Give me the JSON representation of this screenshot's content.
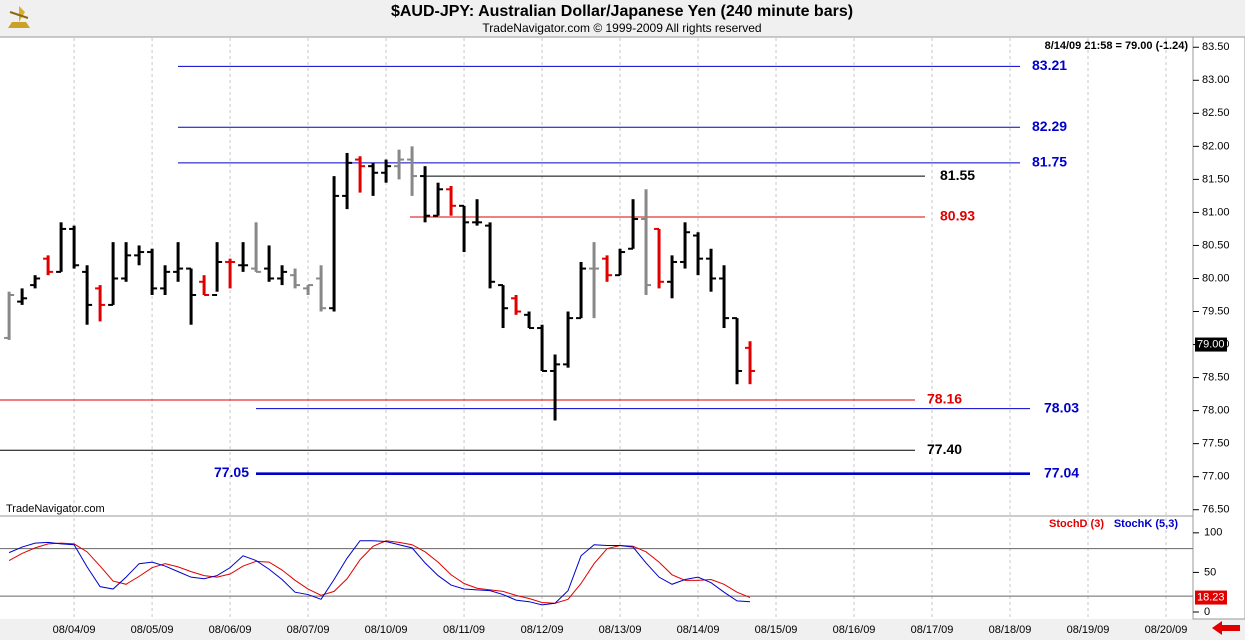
{
  "chart_data": {
    "type": "ohlc",
    "title": "$AUD-JPY:  Australian Dollar/Japanese Yen  (240 minute bars)",
    "subtitle": "TradeNavigator.com © 1999-2009 All rights reserved",
    "info": "8/14/09 21:58 = 79.00 (-1.24)",
    "watermark": "TradeNavigator.com",
    "last_price": {
      "value": 79.0,
      "label": "79.00"
    },
    "categories": [
      null,
      null,
      null,
      null,
      null,
      null,
      null,
      null,
      null,
      null,
      null,
      null,
      null,
      null,
      null,
      null,
      null,
      null,
      null,
      null,
      null,
      null,
      null,
      null,
      null,
      null,
      null,
      null,
      null,
      null,
      null,
      null,
      null,
      null,
      null,
      null,
      null,
      null,
      null,
      null,
      null,
      null,
      null,
      null,
      null,
      null,
      null,
      null,
      null,
      null,
      null,
      null,
      null,
      null,
      null,
      null,
      null,
      null
    ],
    "open": [
      79.1,
      79.65,
      79.9,
      80.3,
      80.1,
      80.75,
      80.1,
      79.85,
      79.6,
      80.0,
      80.35,
      80.4,
      79.85,
      80.1,
      80.15,
      79.95,
      79.75,
      80.25,
      80.2,
      80.15,
      80.15,
      80.0,
      80.05,
      79.85,
      80.0,
      79.55,
      81.25,
      81.8,
      81.7,
      81.6,
      81.7,
      81.8,
      81.55,
      80.95,
      81.35,
      81.1,
      80.85,
      80.8,
      79.9,
      79.7,
      79.45,
      79.25,
      78.6,
      78.7,
      79.4,
      80.15,
      80.3,
      80.05,
      80.45,
      80.9,
      80.75,
      79.95,
      80.25,
      80.65,
      80.3,
      80.0,
      79.4,
      78.95
    ],
    "high": [
      79.8,
      79.85,
      80.05,
      80.35,
      80.85,
      80.8,
      80.2,
      79.9,
      80.55,
      80.55,
      80.5,
      80.45,
      80.2,
      80.55,
      80.15,
      80.05,
      80.55,
      80.3,
      80.55,
      80.85,
      80.5,
      80.2,
      80.15,
      79.9,
      80.2,
      81.55,
      81.9,
      81.85,
      81.75,
      81.8,
      81.95,
      82.0,
      81.7,
      81.45,
      81.4,
      81.1,
      81.2,
      80.85,
      79.9,
      79.75,
      79.5,
      79.3,
      78.85,
      79.5,
      80.25,
      80.55,
      80.35,
      80.45,
      81.2,
      81.35,
      80.75,
      80.35,
      80.85,
      80.7,
      80.45,
      80.2,
      79.4,
      79.05
    ],
    "low": [
      79.07,
      79.6,
      79.85,
      80.05,
      80.1,
      80.15,
      79.3,
      79.35,
      79.6,
      79.95,
      80.2,
      79.75,
      79.75,
      79.95,
      79.3,
      79.75,
      79.8,
      79.85,
      80.1,
      80.1,
      79.95,
      79.9,
      79.85,
      79.75,
      79.5,
      79.5,
      81.05,
      81.3,
      81.25,
      81.45,
      81.5,
      81.25,
      80.85,
      80.95,
      80.95,
      80.4,
      80.8,
      79.85,
      79.25,
      79.45,
      79.25,
      78.6,
      77.85,
      78.65,
      79.4,
      79.4,
      79.95,
      80.05,
      80.45,
      79.75,
      79.85,
      79.7,
      80.15,
      80.05,
      79.8,
      79.25,
      78.4,
      78.4
    ],
    "close": [
      79.75,
      79.7,
      80.0,
      80.1,
      80.75,
      80.2,
      79.6,
      79.6,
      80.0,
      80.35,
      80.4,
      79.85,
      80.1,
      80.15,
      79.75,
      79.75,
      80.25,
      80.25,
      80.2,
      80.1,
      80.0,
      80.1,
      79.9,
      79.9,
      79.55,
      81.25,
      81.75,
      81.7,
      81.6,
      81.7,
      81.8,
      81.55,
      80.95,
      81.35,
      81.1,
      80.85,
      80.85,
      79.95,
      79.55,
      79.5,
      79.25,
      78.6,
      78.7,
      79.4,
      80.15,
      80.15,
      80.05,
      80.4,
      80.9,
      79.9,
      79.95,
      80.25,
      80.7,
      80.3,
      80.0,
      79.4,
      78.6,
      78.6
    ],
    "bar_colors": [
      "#888888",
      "#000000",
      "#000000",
      "#e00000",
      "#000000",
      "#000000",
      "#000000",
      "#e00000",
      "#000000",
      "#000000",
      "#000000",
      "#000000",
      "#000000",
      "#000000",
      "#000000",
      "#e00000",
      "#000000",
      "#e00000",
      "#000000",
      "#888888",
      "#000000",
      "#000000",
      "#888888",
      "#888888",
      "#888888",
      "#000000",
      "#000000",
      "#e00000",
      "#000000",
      "#000000",
      "#888888",
      "#888888",
      "#000000",
      "#000000",
      "#e00000",
      "#000000",
      "#000000",
      "#000000",
      "#000000",
      "#e00000",
      "#000000",
      "#000000",
      "#000000",
      "#000000",
      "#000000",
      "#888888",
      "#e00000",
      "#000000",
      "#000000",
      "#888888",
      "#e00000",
      "#000000",
      "#000000",
      "#000000",
      "#000000",
      "#000000",
      "#000000",
      "#e00000"
    ],
    "ylim": [
      76.42,
      83.64
    ],
    "yticks": [
      {
        "value": 76.5,
        "label": "76.50"
      },
      {
        "value": 77,
        "label": "77.00"
      },
      {
        "value": 77.5,
        "label": "77.50"
      },
      {
        "value": 78,
        "label": "78.00"
      },
      {
        "value": 78.5,
        "label": "78.50"
      },
      {
        "value": 79,
        "label": "79.00"
      },
      {
        "value": 79.5,
        "label": "79.50"
      },
      {
        "value": 80,
        "label": "80.00"
      },
      {
        "value": 80.5,
        "label": "80.50"
      },
      {
        "value": 81,
        "label": "81.00"
      },
      {
        "value": 81.5,
        "label": "81.50"
      },
      {
        "value": 82,
        "label": "82.00"
      },
      {
        "value": 82.5,
        "label": "82.50"
      },
      {
        "value": 83,
        "label": "83.00"
      },
      {
        "value": 83.5,
        "label": "83.50"
      }
    ],
    "xlim": [
      -0.7,
      91
    ],
    "xticks": [
      {
        "value": 5,
        "label": "08/04/09"
      },
      {
        "value": 11,
        "label": "08/05/09"
      },
      {
        "value": 17,
        "label": "08/06/09"
      },
      {
        "value": 23,
        "label": "08/07/09"
      },
      {
        "value": 29,
        "label": "08/10/09"
      },
      {
        "value": 35,
        "label": "08/11/09"
      },
      {
        "value": 41,
        "label": "08/12/09"
      },
      {
        "value": 47,
        "label": "08/13/09"
      },
      {
        "value": 53,
        "label": "08/14/09"
      },
      {
        "value": 59,
        "label": "08/15/09"
      },
      {
        "value": 65,
        "label": "08/16/09"
      },
      {
        "value": 71,
        "label": "08/17/09"
      },
      {
        "value": 77,
        "label": "08/18/09"
      },
      {
        "value": 83,
        "label": "08/19/09"
      },
      {
        "value": 89,
        "label": "08/20/09"
      }
    ],
    "levels": [
      {
        "value": 83.21,
        "label": "83.21",
        "color": "#0000cc"
      },
      {
        "value": 82.29,
        "label": "82.29",
        "color": "#0000cc"
      },
      {
        "value": 81.75,
        "label": "81.75",
        "color": "#0000cc"
      },
      {
        "value": 81.55,
        "label": "81.55",
        "color": "#000000"
      },
      {
        "value": 80.93,
        "label": "80.93",
        "color": "#e00000"
      },
      {
        "value": 78.16,
        "label": "78.16",
        "color": "#e00000"
      },
      {
        "value": 78.03,
        "label": "78.03",
        "color": "#0000cc"
      },
      {
        "value": 77.4,
        "label": "77.40",
        "color": "#000000"
      },
      {
        "value": 77.05,
        "label": "77.05",
        "color": "#0000cc"
      },
      {
        "value": 77.04,
        "label": "77.04",
        "color": "#0000cc"
      }
    ],
    "indicator": {
      "type": "line",
      "ylim": [
        -7.6,
        120
      ],
      "yticks": [
        100,
        50,
        0
      ],
      "reference_lines": [
        80,
        20
      ],
      "last_value": {
        "value": 18.23,
        "label": "18.23"
      },
      "series": [
        {
          "name": "StochD (3)",
          "color": "#e00000",
          "values": [
            65,
            74,
            81,
            86,
            87,
            86,
            76,
            58,
            39,
            35,
            45,
            56,
            61,
            57,
            51,
            46,
            44,
            48,
            58,
            64,
            63,
            53,
            40,
            29,
            21,
            26,
            42,
            66,
            83,
            90,
            88,
            85,
            76,
            63,
            47,
            36,
            30,
            28,
            26,
            21,
            17,
            12,
            11,
            16,
            36,
            61,
            80,
            84,
            83,
            76,
            63,
            47,
            40,
            40,
            41,
            35,
            25,
            18.23
          ]
        },
        {
          "name": "StochK (5,3)",
          "color": "#0000cc",
          "values": [
            75,
            82,
            87,
            88,
            86,
            85,
            57,
            32,
            29,
            44,
            61,
            63,
            58,
            51,
            44,
            42,
            46,
            56,
            71,
            65,
            54,
            41,
            25,
            22,
            16,
            41,
            68,
            90,
            90,
            89,
            85,
            81,
            62,
            46,
            34,
            29,
            28,
            27,
            22,
            15,
            13,
            9,
            11,
            27,
            71,
            85,
            84,
            84,
            82,
            62,
            44,
            35,
            41,
            44,
            37,
            25,
            14,
            13
          ]
        }
      ]
    }
  }
}
